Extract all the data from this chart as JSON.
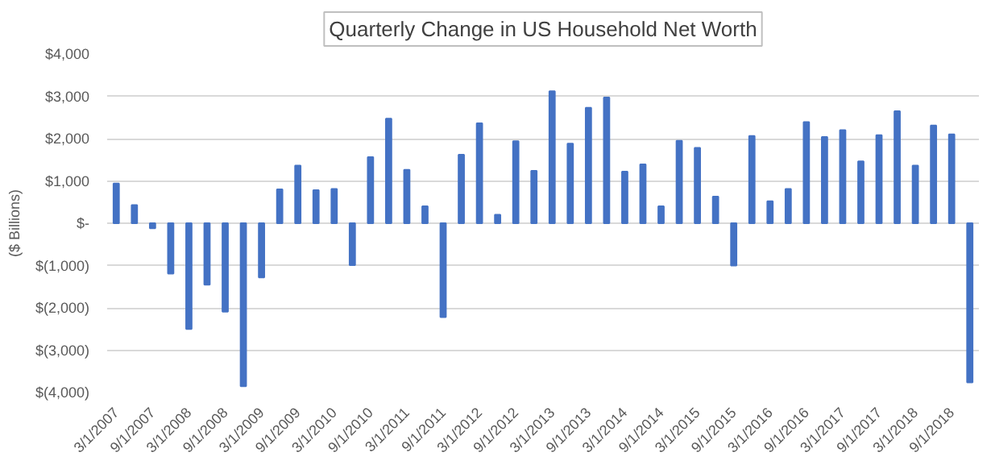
{
  "chart_data": {
    "type": "bar",
    "title": "Quarterly Change in US Household Net Worth",
    "ylabel": "($ Billions)",
    "categories": [
      "3/1/2007",
      null,
      "9/1/2007",
      null,
      "3/1/2008",
      null,
      "9/1/2008",
      null,
      "3/1/2009",
      null,
      "9/1/2009",
      null,
      "3/1/2010",
      null,
      "9/1/2010",
      null,
      "3/1/2011",
      null,
      "9/1/2011",
      null,
      "3/1/2012",
      null,
      "9/1/2012",
      null,
      "3/1/2013",
      null,
      "9/1/2013",
      null,
      "3/1/2014",
      null,
      "9/1/2014",
      null,
      "3/1/2015",
      null,
      "9/1/2015",
      null,
      "3/1/2016",
      null,
      "9/1/2016",
      null,
      "3/1/2017",
      null,
      "9/1/2017",
      null,
      "3/1/2018",
      null,
      "9/1/2018",
      null
    ],
    "values": [
      940,
      430,
      -120,
      -1190,
      -2500,
      -1450,
      -2090,
      -3850,
      -1280,
      800,
      1360,
      780,
      810,
      -990,
      1560,
      2470,
      1260,
      400,
      -2220,
      1620,
      2360,
      200,
      1940,
      1240,
      3120,
      1880,
      2730,
      2970,
      1220,
      1390,
      400,
      1950,
      1780,
      630,
      -1000,
      2060,
      520,
      810,
      2390,
      2040,
      2200,
      1460,
      2080,
      2650,
      1360,
      2310,
      2100,
      -3760
    ],
    "color": "#4472c4",
    "ylim": [
      -4000,
      4000
    ],
    "yticks": [
      {
        "value": -4000,
        "label": "$(4,000)"
      },
      {
        "value": -3000,
        "label": "$(3,000)"
      },
      {
        "value": -2000,
        "label": "$(2,000)"
      },
      {
        "value": -1000,
        "label": "$(1,000)"
      },
      {
        "value": 0,
        "label": "$-"
      },
      {
        "value": 1000,
        "label": "$1,000"
      },
      {
        "value": 2000,
        "label": "$2,000"
      },
      {
        "value": 3000,
        "label": "$3,000"
      },
      {
        "value": 4000,
        "label": "$4,000"
      }
    ],
    "grid": "y"
  }
}
